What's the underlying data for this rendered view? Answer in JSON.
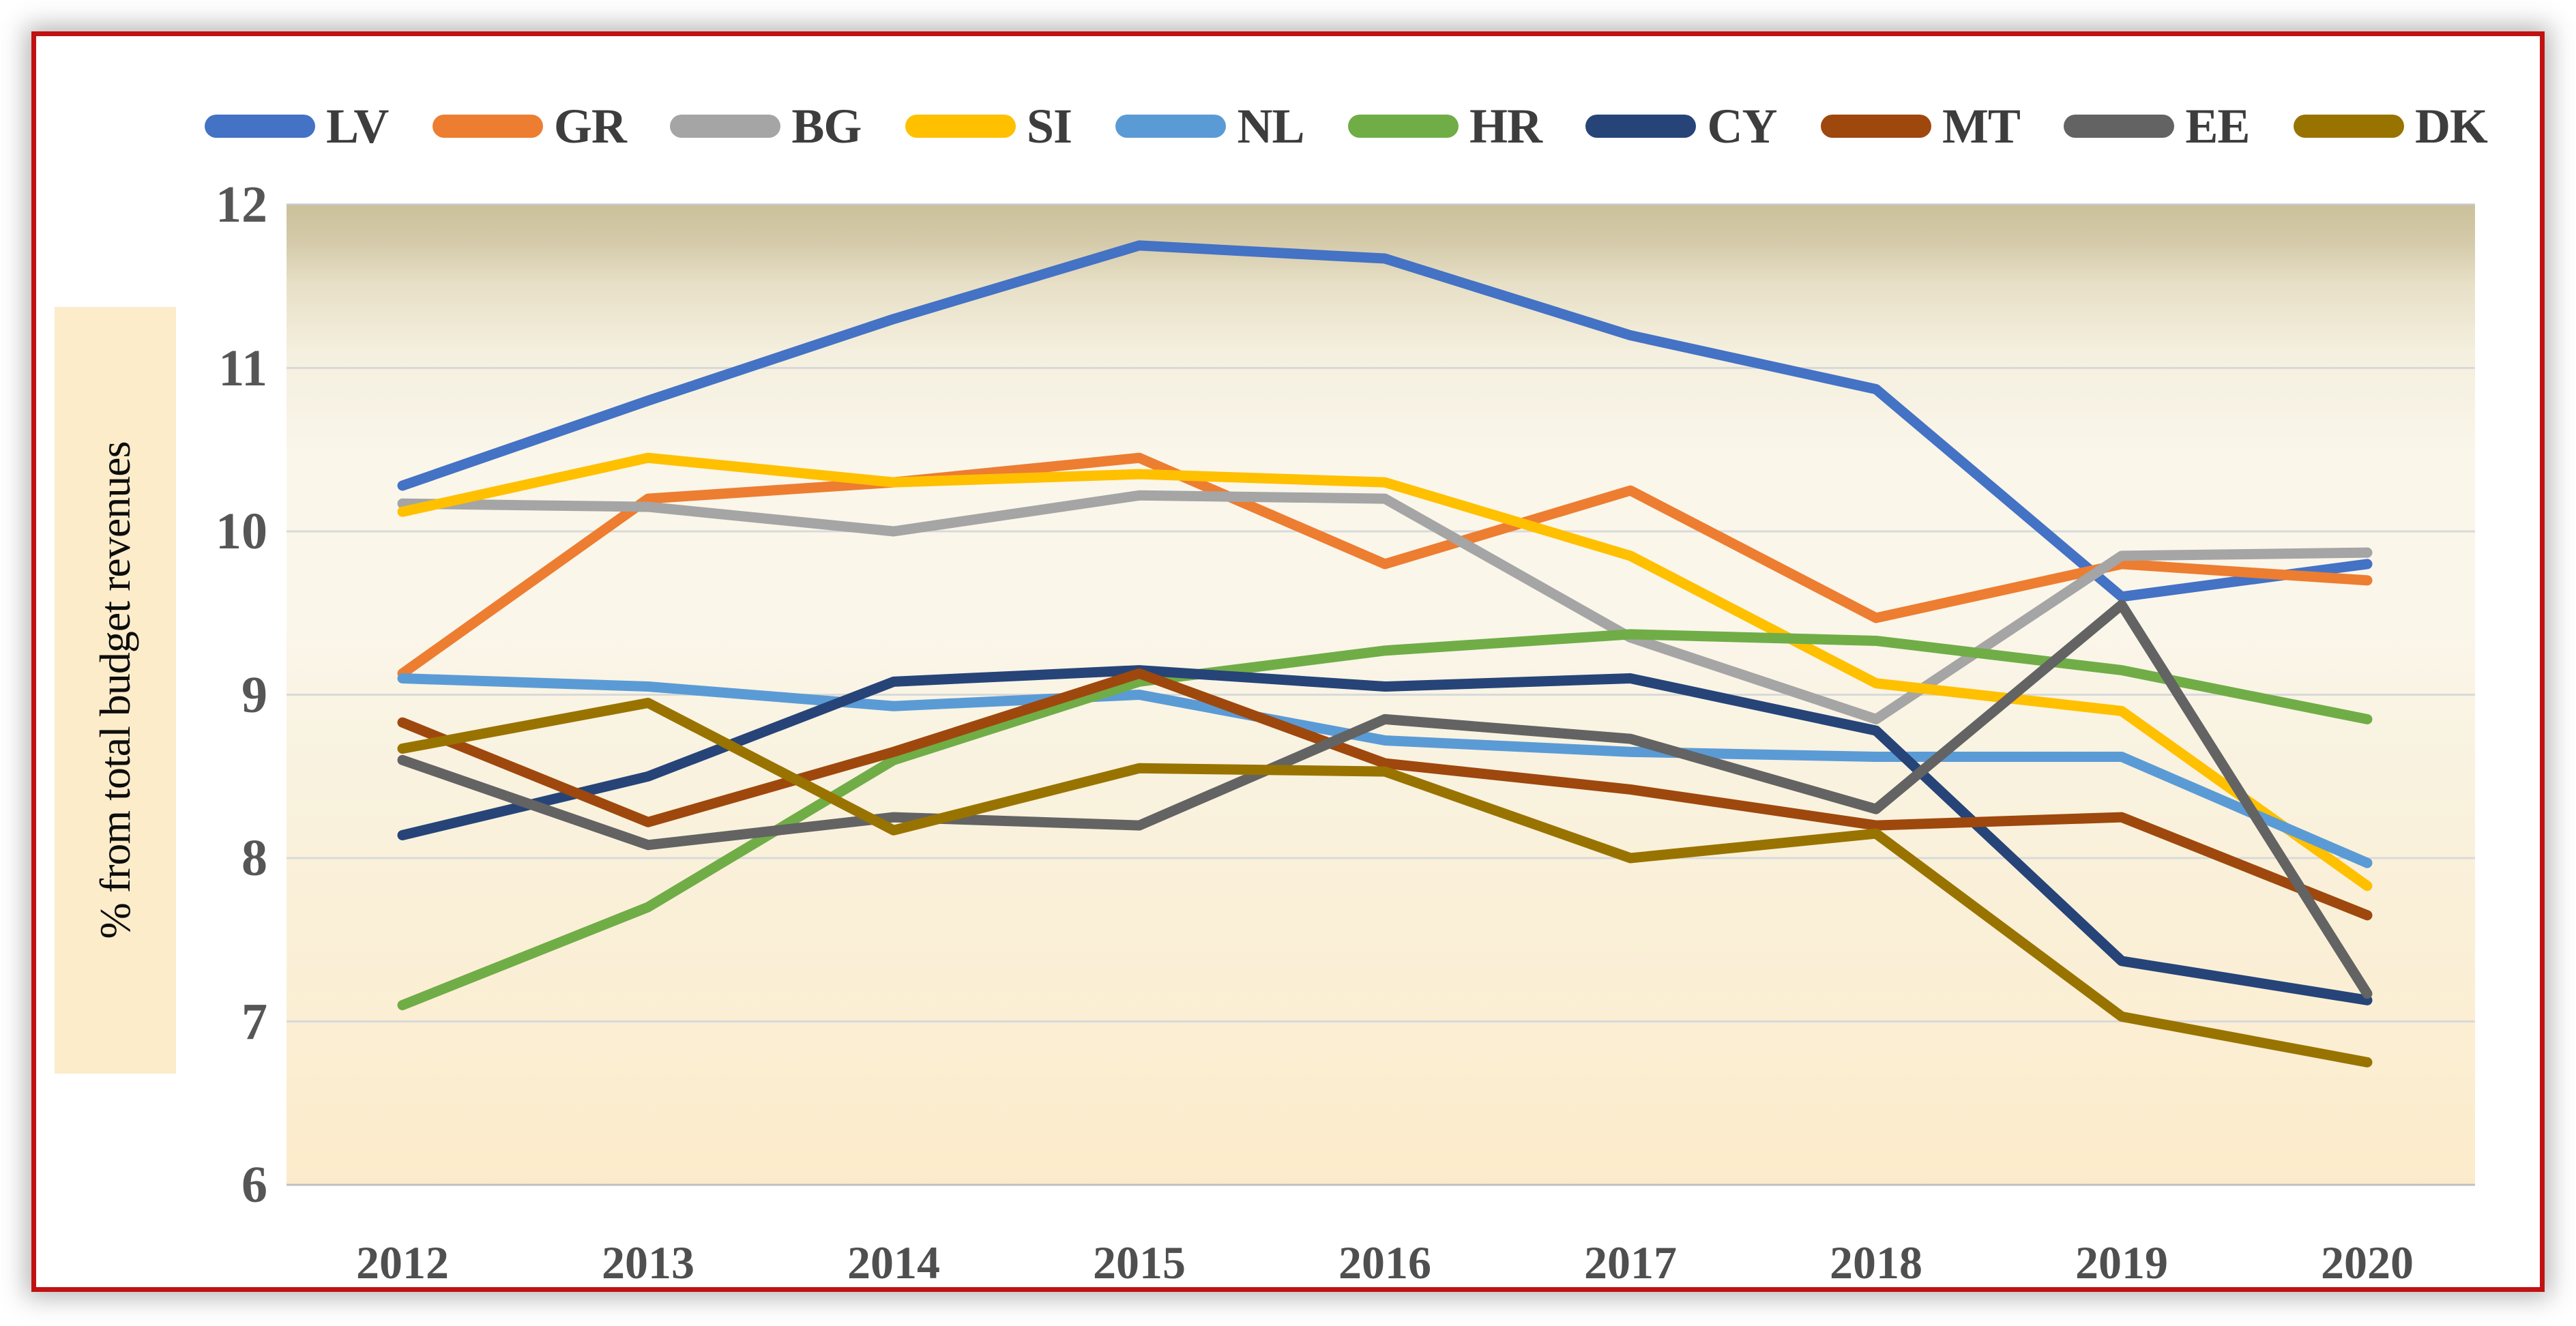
{
  "frame": {
    "border_color": "#C01212",
    "shadow_color": "#8a8a8a"
  },
  "axis_style": {
    "tick_color": "#565656",
    "gridline_color": "#d9d9d9"
  },
  "chart_data": {
    "type": "line",
    "title": "",
    "xlabel": "",
    "ylabel": "% from total budget revenues",
    "x": [
      2012,
      2013,
      2014,
      2015,
      2016,
      2017,
      2018,
      2019,
      2020
    ],
    "ylim": [
      6,
      12
    ],
    "yticks": [
      12,
      11,
      10,
      9,
      8,
      7,
      6
    ],
    "grid": true,
    "legend_position": "top",
    "series": [
      {
        "name": "LV",
        "color": "#4472C4",
        "values": [
          10.28,
          10.8,
          11.3,
          11.75,
          11.67,
          11.2,
          10.87,
          9.6,
          9.8
        ]
      },
      {
        "name": "GR",
        "color": "#ED7D31",
        "values": [
          9.13,
          10.2,
          10.3,
          10.45,
          9.8,
          10.25,
          9.47,
          9.8,
          9.7
        ]
      },
      {
        "name": "BG",
        "color": "#A5A5A5",
        "values": [
          10.17,
          10.15,
          10.0,
          10.22,
          10.2,
          9.35,
          8.85,
          9.85,
          9.87
        ]
      },
      {
        "name": "SI",
        "color": "#FFC000",
        "values": [
          10.12,
          10.45,
          10.3,
          10.35,
          10.3,
          9.85,
          9.07,
          8.9,
          7.83
        ]
      },
      {
        "name": "NL",
        "color": "#5B9BD5",
        "values": [
          9.1,
          9.05,
          8.93,
          9.0,
          8.72,
          8.65,
          8.62,
          8.62,
          7.97
        ]
      },
      {
        "name": "HR",
        "color": "#70AD47",
        "values": [
          7.1,
          7.7,
          8.6,
          9.08,
          9.27,
          9.37,
          9.33,
          9.15,
          8.85
        ]
      },
      {
        "name": "CY",
        "color": "#264478",
        "values": [
          8.14,
          8.5,
          9.08,
          9.15,
          9.05,
          9.1,
          8.78,
          7.37,
          7.13
        ]
      },
      {
        "name": "MT",
        "color": "#9E480E",
        "values": [
          8.83,
          8.22,
          8.65,
          9.13,
          8.58,
          8.42,
          8.2,
          8.25,
          7.65
        ]
      },
      {
        "name": "EE",
        "color": "#636363",
        "values": [
          8.6,
          8.08,
          8.25,
          8.2,
          8.85,
          8.73,
          8.3,
          9.55,
          7.17
        ]
      },
      {
        "name": "DK",
        "color": "#997300",
        "values": [
          8.67,
          8.95,
          8.17,
          8.55,
          8.53,
          8.0,
          8.15,
          7.03,
          6.75
        ]
      }
    ]
  }
}
